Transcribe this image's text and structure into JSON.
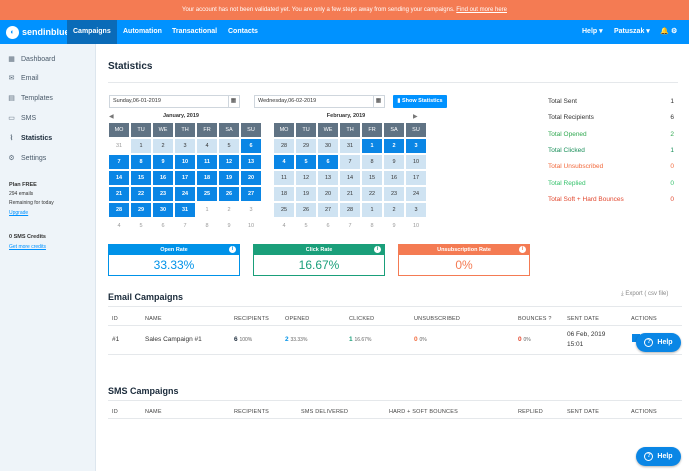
{
  "banner": {
    "text": "Your account has not been validated yet. You are only a few steps away from sending your campaigns.",
    "link": "Find out more here"
  },
  "nav": {
    "brand": "sendinblue",
    "tabs": [
      "Campaigns",
      "Automation",
      "Transactional",
      "Contacts"
    ],
    "help": "Help",
    "user": "Patuszak"
  },
  "sidebar": {
    "items": [
      {
        "label": "Dashboard",
        "icon": "dashboard-icon"
      },
      {
        "label": "Email",
        "icon": "envelope-icon"
      },
      {
        "label": "Templates",
        "icon": "template-icon"
      },
      {
        "label": "SMS",
        "icon": "sms-icon"
      },
      {
        "label": "Statistics",
        "icon": "chart-icon"
      },
      {
        "label": "Settings",
        "icon": "gear-icon"
      }
    ],
    "plan": "Plan FREE",
    "emails": "294 emails",
    "remaining": "Remaining for today",
    "upgrade": "Upgrade",
    "sms_credits": "0 SMS Credits",
    "get_credits": "Get more credits"
  },
  "page": {
    "title": "Statistics",
    "date_from": "Sunday,06-01-2019",
    "date_to": "Wednesday,06-02-2019",
    "show_button": "Show Statistics"
  },
  "cal1": {
    "title": "January, 2019",
    "weekdays": [
      "MO",
      "TU",
      "WE",
      "TH",
      "FR",
      "SA",
      "SU"
    ],
    "days": [
      [
        "31",
        "out"
      ],
      [
        "1",
        "rng"
      ],
      [
        "2",
        "rng"
      ],
      [
        "3",
        "rng"
      ],
      [
        "4",
        "rng"
      ],
      [
        "5",
        "rng"
      ],
      [
        "6",
        "start"
      ],
      [
        "7",
        "sel"
      ],
      [
        "8",
        "sel"
      ],
      [
        "9",
        "sel"
      ],
      [
        "10",
        "sel"
      ],
      [
        "11",
        "sel"
      ],
      [
        "12",
        "sel"
      ],
      [
        "13",
        "sel"
      ],
      [
        "14",
        "sel"
      ],
      [
        "15",
        "sel"
      ],
      [
        "16",
        "sel"
      ],
      [
        "17",
        "sel"
      ],
      [
        "18",
        "sel"
      ],
      [
        "19",
        "sel"
      ],
      [
        "20",
        "sel"
      ],
      [
        "21",
        "sel"
      ],
      [
        "22",
        "sel"
      ],
      [
        "23",
        "sel"
      ],
      [
        "24",
        "sel"
      ],
      [
        "25",
        "sel"
      ],
      [
        "26",
        "sel"
      ],
      [
        "27",
        "sel"
      ],
      [
        "28",
        "sel"
      ],
      [
        "29",
        "sel"
      ],
      [
        "30",
        "sel"
      ],
      [
        "31",
        "sel"
      ],
      [
        "1",
        "out"
      ],
      [
        "2",
        "out"
      ],
      [
        "3",
        "out"
      ],
      [
        "4",
        "out"
      ],
      [
        "5",
        "out"
      ],
      [
        "6",
        "out"
      ],
      [
        "7",
        "out"
      ],
      [
        "8",
        "out"
      ],
      [
        "9",
        "out"
      ],
      [
        "10",
        "out"
      ]
    ]
  },
  "cal2": {
    "title": "February, 2019",
    "weekdays": [
      "MO",
      "TU",
      "WE",
      "TH",
      "FR",
      "SA",
      "SU"
    ],
    "days": [
      [
        "28",
        "rng"
      ],
      [
        "29",
        "rng"
      ],
      [
        "30",
        "rng"
      ],
      [
        "31",
        "rng"
      ],
      [
        "1",
        "sel"
      ],
      [
        "2",
        "sel"
      ],
      [
        "3",
        "sel"
      ],
      [
        "4",
        "sel"
      ],
      [
        "5",
        "sel"
      ],
      [
        "6",
        "sel"
      ],
      [
        "7",
        "rng"
      ],
      [
        "8",
        "rng"
      ],
      [
        "9",
        "rng"
      ],
      [
        "10",
        "rng"
      ],
      [
        "11",
        "rng"
      ],
      [
        "12",
        "rng"
      ],
      [
        "13",
        "rng"
      ],
      [
        "14",
        "rng"
      ],
      [
        "15",
        "rng"
      ],
      [
        "16",
        "rng"
      ],
      [
        "17",
        "rng"
      ],
      [
        "18",
        "rng"
      ],
      [
        "19",
        "rng"
      ],
      [
        "20",
        "rng"
      ],
      [
        "21",
        "rng"
      ],
      [
        "22",
        "rng"
      ],
      [
        "23",
        "rng"
      ],
      [
        "24",
        "rng"
      ],
      [
        "25",
        "rng"
      ],
      [
        "26",
        "rng"
      ],
      [
        "27",
        "rng"
      ],
      [
        "28",
        "rng"
      ],
      [
        "1",
        "rng"
      ],
      [
        "2",
        "rng"
      ],
      [
        "3",
        "rng"
      ],
      [
        "4",
        "out"
      ],
      [
        "5",
        "out"
      ],
      [
        "6",
        "out"
      ],
      [
        "7",
        "out"
      ],
      [
        "8",
        "out"
      ],
      [
        "9",
        "out"
      ],
      [
        "10",
        "out"
      ]
    ]
  },
  "summary": [
    {
      "label": "Total Sent",
      "value": "1",
      "color": "#333333"
    },
    {
      "label": "Total Recipients",
      "value": "6",
      "color": "#333333"
    },
    {
      "label": "Total Opened",
      "value": "2",
      "color": "#2fa84f"
    },
    {
      "label": "Total Clicked",
      "value": "1",
      "color": "#1a8f5a"
    },
    {
      "label": "Total Unsubscribed",
      "value": "0",
      "color": "#f26a3d"
    },
    {
      "label": "Total Replied",
      "value": "0",
      "color": "#34c26b"
    },
    {
      "label": "Total Soft + Hard Bounces",
      "value": "0",
      "color": "#e2472e"
    }
  ],
  "kpis": [
    {
      "label": "Open Rate",
      "value": "33.33%",
      "color": "#0092e8"
    },
    {
      "label": "Click Rate",
      "value": "16.67%",
      "color": "#1a9f7a"
    },
    {
      "label": "Unsubscription Rate",
      "value": "0%",
      "color": "#f47b53"
    }
  ],
  "email_campaigns": {
    "title": "Email Campaigns",
    "export": "Export ( csv file)",
    "headers": [
      "ID",
      "NAME",
      "RECIPIENTS",
      "OPENED",
      "CLICKED",
      "UNSUBSCRIBED",
      "BOUNCES",
      "SENT DATE",
      "ACTIONS"
    ],
    "row": {
      "id": "#1",
      "name": "Sales Campaign #1",
      "recipients": "6",
      "recipients_pct": "100%",
      "opened": "2",
      "opened_pct": "33.33%",
      "clicked": "1",
      "clicked_pct": "16.67%",
      "unsub": "0",
      "unsub_pct": "0%",
      "bounces": "0",
      "bounces_pct": "0%",
      "sent_date": "06 Feb, 2019",
      "sent_time": "15:01"
    }
  },
  "sms_campaigns": {
    "title": "SMS Campaigns",
    "headers": [
      "ID",
      "NAME",
      "RECIPIENTS",
      "SMS DELIVERED",
      "HARD + SOFT BOUNCES",
      "REPLIED",
      "SENT DATE",
      "ACTIONS"
    ]
  },
  "help_button": "Help"
}
